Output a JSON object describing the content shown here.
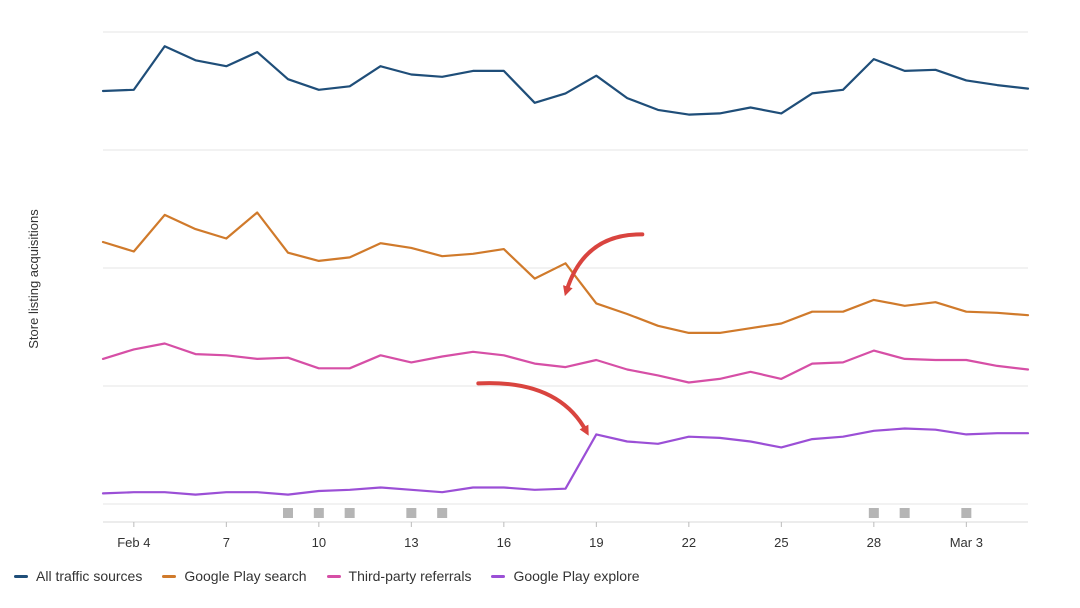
{
  "chart_data": {
    "type": "line",
    "ylabel": "Store listing acquisitions",
    "x": [
      "Feb 3",
      "Feb 4",
      "Feb 5",
      "Feb 6",
      "Feb 7",
      "Feb 8",
      "Feb 9",
      "Feb 10",
      "Feb 11",
      "Feb 12",
      "Feb 13",
      "Feb 14",
      "Feb 15",
      "Feb 16",
      "Feb 17",
      "Feb 18",
      "Feb 19",
      "Feb 20",
      "Feb 21",
      "Feb 22",
      "Feb 23",
      "Feb 24",
      "Feb 25",
      "Feb 26",
      "Feb 27",
      "Feb 28",
      "Feb 29",
      "Mar 1",
      "Mar 2",
      "Mar 3",
      "Mar 4"
    ],
    "xticks": [
      {
        "index": 1,
        "label": "Feb 4"
      },
      {
        "index": 4,
        "label": "7"
      },
      {
        "index": 7,
        "label": "10"
      },
      {
        "index": 10,
        "label": "13"
      },
      {
        "index": 13,
        "label": "16"
      },
      {
        "index": 16,
        "label": "19"
      },
      {
        "index": 19,
        "label": "22"
      },
      {
        "index": 22,
        "label": "25"
      },
      {
        "index": 25,
        "label": "28"
      },
      {
        "index": 28,
        "label": "Mar 3"
      }
    ],
    "yaxis_ticks_labeled": false,
    "ylim": [
      0,
      4
    ],
    "series": [
      {
        "name": "All traffic sources",
        "color": "#1f4e79",
        "values": [
          3.5,
          3.51,
          3.88,
          3.76,
          3.71,
          3.83,
          3.6,
          3.51,
          3.54,
          3.71,
          3.64,
          3.62,
          3.67,
          3.67,
          3.4,
          3.48,
          3.63,
          3.44,
          3.34,
          3.3,
          3.31,
          3.36,
          3.31,
          3.48,
          3.51,
          3.77,
          3.67,
          3.68,
          3.59,
          3.55,
          3.52
        ]
      },
      {
        "name": "Google Play search",
        "color": "#d07a2b",
        "values": [
          2.22,
          2.14,
          2.45,
          2.33,
          2.25,
          2.47,
          2.13,
          2.06,
          2.09,
          2.21,
          2.17,
          2.1,
          2.12,
          2.16,
          1.91,
          2.04,
          1.7,
          1.61,
          1.51,
          1.45,
          1.45,
          1.49,
          1.53,
          1.63,
          1.63,
          1.73,
          1.68,
          1.71,
          1.63,
          1.62,
          1.6
        ]
      },
      {
        "name": "Third-party referrals",
        "color": "#d64fa6",
        "values": [
          1.23,
          1.31,
          1.36,
          1.27,
          1.26,
          1.23,
          1.24,
          1.15,
          1.15,
          1.26,
          1.2,
          1.25,
          1.29,
          1.26,
          1.19,
          1.16,
          1.22,
          1.14,
          1.09,
          1.03,
          1.06,
          1.12,
          1.06,
          1.19,
          1.2,
          1.3,
          1.23,
          1.22,
          1.22,
          1.17,
          1.14
        ]
      },
      {
        "name": "Google Play explore",
        "color": "#9b4fd6",
        "values": [
          0.09,
          0.1,
          0.1,
          0.08,
          0.1,
          0.1,
          0.08,
          0.11,
          0.12,
          0.14,
          0.12,
          0.1,
          0.14,
          0.14,
          0.12,
          0.13,
          0.59,
          0.53,
          0.51,
          0.57,
          0.56,
          0.53,
          0.48,
          0.55,
          0.57,
          0.62,
          0.64,
          0.63,
          0.59,
          0.6,
          0.6
        ]
      }
    ],
    "annotation_markers_at": [
      6,
      7,
      8,
      10,
      11,
      25,
      26,
      28
    ],
    "annotations": [
      {
        "type": "arrow",
        "target_series": "Google Play search",
        "target_index": 16,
        "color": "#d9443f"
      },
      {
        "type": "arrow",
        "target_series": "Google Play explore",
        "target_index": 16,
        "color": "#d9443f"
      }
    ]
  }
}
